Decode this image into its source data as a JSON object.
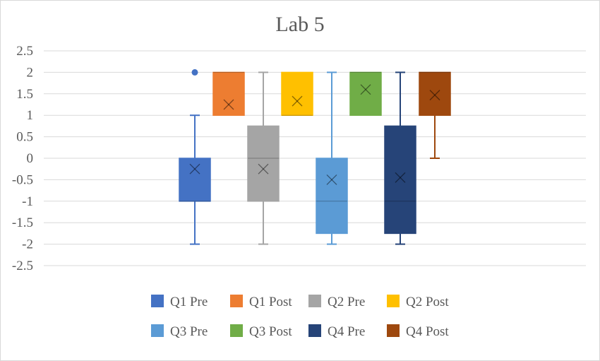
{
  "chart_data": {
    "type": "boxplot",
    "title": "Lab 5",
    "xlabel": "",
    "ylabel": "",
    "ylim": [
      -2.5,
      2.5
    ],
    "y_ticks": [
      "2.5",
      "2",
      "1.5",
      "1",
      "0.5",
      "0",
      "-0.5",
      "-1",
      "-1.5",
      "-2",
      "-2.5"
    ],
    "grid": true,
    "legend_position": "bottom",
    "series": [
      {
        "name": "Q1 Pre",
        "color": "#4472C4",
        "min": -2,
        "q1": -1,
        "median": -1,
        "q3": 0,
        "max": 1,
        "mean": -0.25,
        "outliers": [
          2
        ]
      },
      {
        "name": "Q1 Post",
        "color": "#ED7D31",
        "min": 1,
        "q1": 1,
        "median": 2,
        "q3": 2,
        "max": 2,
        "mean": 1.25,
        "outliers": []
      },
      {
        "name": "Q2 Pre",
        "color": "#A5A5A5",
        "min": -2,
        "q1": -1,
        "median": 0,
        "q3": 0.75,
        "max": 2,
        "mean": -0.25,
        "outliers": []
      },
      {
        "name": "Q2 Post",
        "color": "#FFC000",
        "min": 1,
        "q1": 1,
        "median": 1,
        "q3": 2,
        "max": 2,
        "mean": 1.33,
        "outliers": []
      },
      {
        "name": "Q3 Pre",
        "color": "#5B9BD5",
        "min": -2,
        "q1": -1.75,
        "median": -1,
        "q3": 0,
        "max": 2,
        "mean": -0.5,
        "outliers": []
      },
      {
        "name": "Q3 Post",
        "color": "#70AD47",
        "min": 1,
        "q1": 1,
        "median": 2,
        "q3": 2,
        "max": 2,
        "mean": 1.6,
        "outliers": []
      },
      {
        "name": "Q4 Pre",
        "color": "#264478",
        "min": -2,
        "q1": -1.75,
        "median": -1,
        "q3": 0.75,
        "max": 2,
        "mean": -0.45,
        "outliers": []
      },
      {
        "name": "Q4 Post",
        "color": "#9E480E",
        "min": 0,
        "q1": 1,
        "median": 2,
        "q3": 2,
        "max": 2,
        "mean": 1.47,
        "outliers": []
      }
    ]
  }
}
